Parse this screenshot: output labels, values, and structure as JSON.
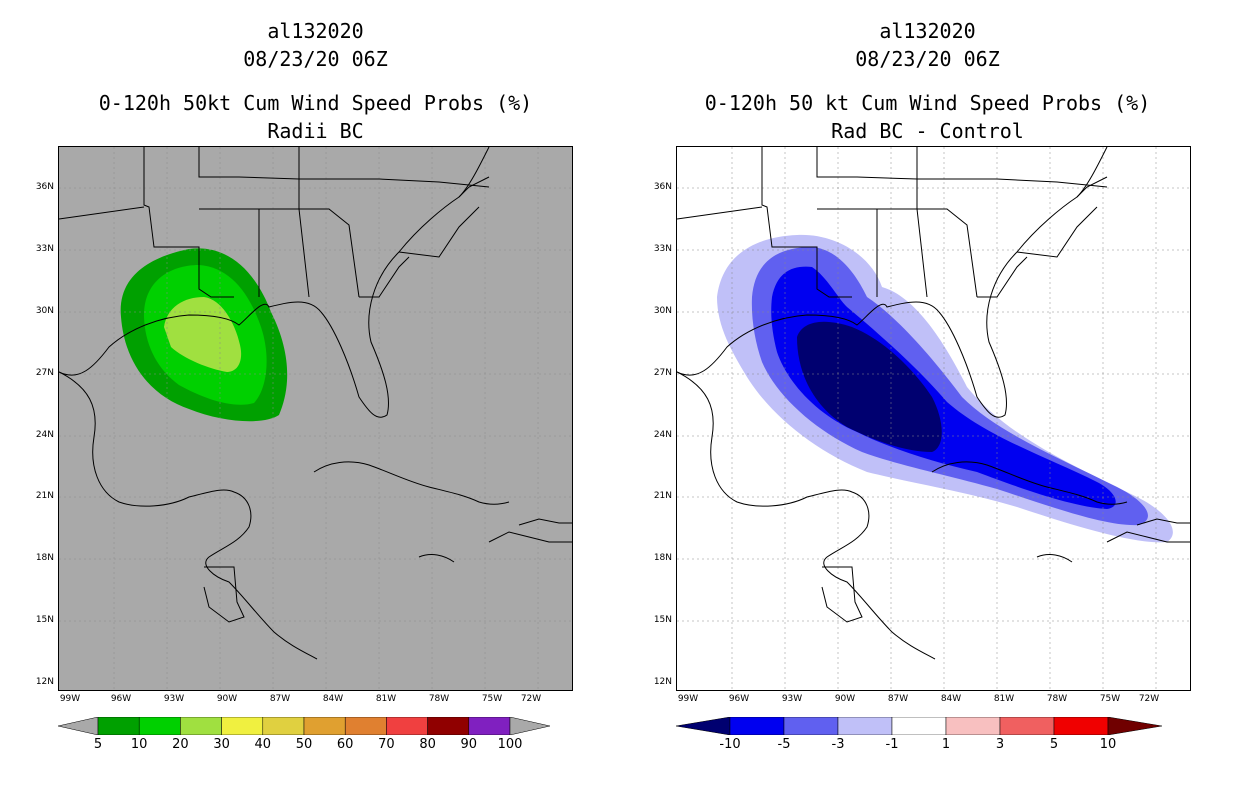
{
  "left_panel": {
    "title_id": "al132020",
    "title_date": "08/23/20 06Z",
    "title_product": "0-120h 50kt Cum Wind Speed Probs (%)",
    "title_sub": "Radii BC",
    "colorbar_labels": [
      "5",
      "10",
      "20",
      "30",
      "40",
      "50",
      "60",
      "70",
      "80",
      "90",
      "100"
    ],
    "colorbar_colors": [
      "#00a000",
      "#00d000",
      "#a0e040",
      "#f0f040",
      "#e0d040",
      "#e0a030",
      "#e08030",
      "#f04040",
      "#900000",
      "#8020c0"
    ]
  },
  "right_panel": {
    "title_id": "al132020",
    "title_date": "08/23/20 06Z",
    "title_product": "0-120h 50 kt Cum Wind Speed Probs (%)",
    "title_sub": "Rad BC - Control",
    "colorbar_labels": [
      "-10",
      "-5",
      "-3",
      "-1",
      "1",
      "3",
      "5",
      "10"
    ],
    "colorbar_colors": [
      "#000070",
      "#0000f0",
      "#6060f0",
      "#c0c0f8",
      "#ffffff",
      "#f8c0c0",
      "#f06060",
      "#f00000",
      "#700000"
    ]
  },
  "lat_labels": [
    "36N",
    "33N",
    "30N",
    "27N",
    "24N",
    "21N",
    "18N",
    "15N",
    "12N"
  ],
  "lon_labels": [
    "99W",
    "96W",
    "93W",
    "90W",
    "87W",
    "84W",
    "81W",
    "78W",
    "75W",
    "72W"
  ],
  "colors": {
    "map_bg_left": "#a9a9a9",
    "map_bg_right": "#ffffff"
  }
}
